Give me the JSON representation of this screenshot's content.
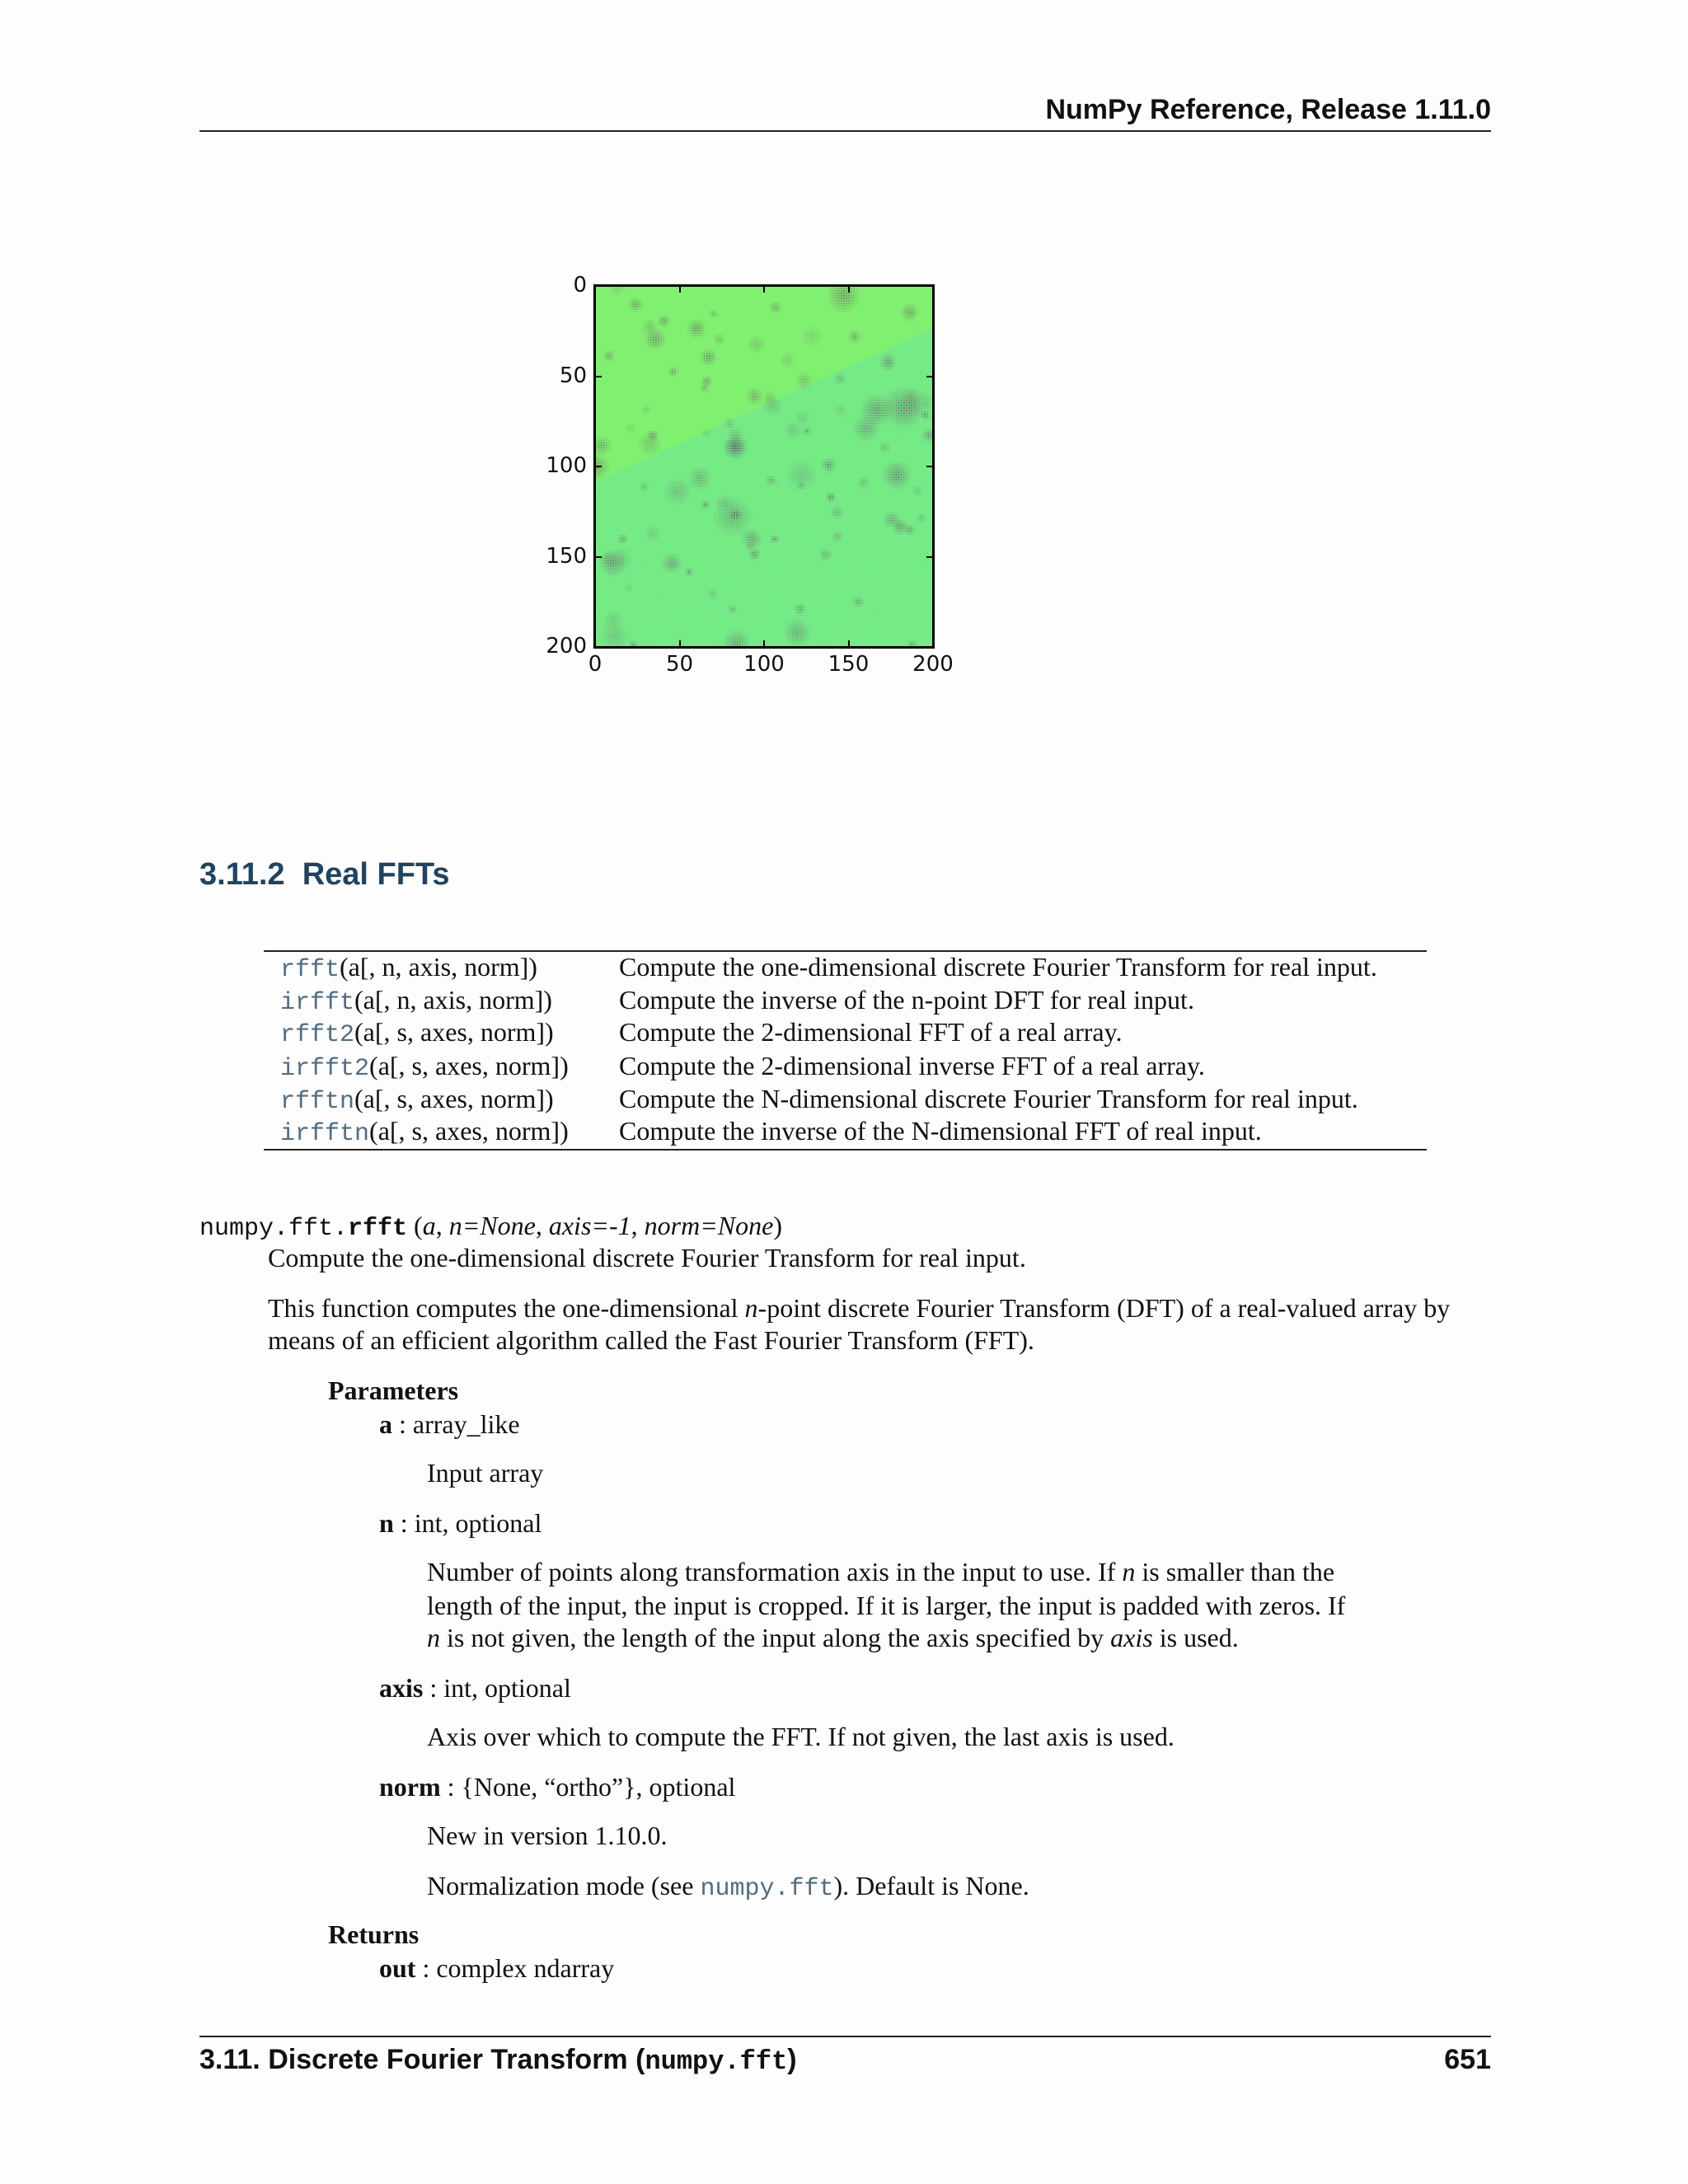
{
  "header": {
    "title": "NumPy Reference, Release 1.11.0"
  },
  "figure": {
    "chart_data": {
      "type": "heatmap",
      "title": "",
      "xlabel": "",
      "ylabel": "",
      "xlim": [
        0,
        200
      ],
      "ylim": [
        200,
        0
      ],
      "x_ticks": [
        "0",
        "50",
        "100",
        "150",
        "200"
      ],
      "y_ticks": [
        "0",
        "50",
        "100",
        "150",
        "200"
      ],
      "colormap": "jet",
      "background_color": "#80f070",
      "feature_color": "#3a3a8c",
      "grid": false,
      "legend": "none"
    }
  },
  "section": {
    "number": "3.11.2",
    "title": "Real FFTs"
  },
  "summary_table": [
    {
      "func": "rfft",
      "args": "(a[, n, axis, norm])",
      "desc": "Compute the one-dimensional discrete Fourier Transform for real input."
    },
    {
      "func": "irfft",
      "args": "(a[, n, axis, norm])",
      "desc": "Compute the inverse of the n-point DFT for real input."
    },
    {
      "func": "rfft2",
      "args": "(a[, s, axes, norm])",
      "desc": "Compute the 2-dimensional FFT of a real array."
    },
    {
      "func": "irfft2",
      "args": "(a[, s, axes, norm])",
      "desc": "Compute the 2-dimensional inverse FFT of a real array."
    },
    {
      "func": "rfftn",
      "args": "(a[, s, axes, norm])",
      "desc": "Compute the N-dimensional discrete Fourier Transform for real input."
    },
    {
      "func": "irfftn",
      "args": "(a[, s, axes, norm])",
      "desc": "Compute the inverse of the N-dimensional FFT of real input."
    }
  ],
  "signature": {
    "module": "numpy.fft.",
    "name": "rfft",
    "open": "(",
    "p_a": "a",
    "sep1": ", ",
    "p_n": "n=None",
    "sep2": ", ",
    "p_axis": "axis=-1",
    "sep3": ", ",
    "p_norm": "norm=None",
    "close": ")"
  },
  "body": {
    "summary": "Compute the one-dimensional discrete Fourier Transform for real input.",
    "para1_a": "This function computes the one-dimensional ",
    "para1_n": "n",
    "para1_b": "-point discrete Fourier Transform (DFT) of a real-valued array by",
    "para1_line2": "means of an efficient algorithm called the Fast Fourier Transform (FFT)."
  },
  "params": {
    "heading": "Parameters",
    "a_name": "a",
    "a_type": " : array_like",
    "a_desc": "Input array",
    "n_name": "n",
    "n_type": " : int, optional",
    "n_l1a": "Number of points along transformation axis in the input to use.  If ",
    "n_l1n": "n",
    "n_l1b": " is smaller than the",
    "n_l2": "length of the input, the input is cropped. If it is larger, the input is padded with zeros. If",
    "n_l3n": "n",
    "n_l3a": " is not given, the length of the input along the axis specified by ",
    "n_l3axis": "axis",
    "n_l3b": " is used.",
    "axis_name": "axis",
    "axis_type": " : int, optional",
    "axis_desc": "Axis over which to compute the FFT. If not given, the last axis is used.",
    "norm_name": "norm",
    "norm_type": " : {None, “ortho”}, optional",
    "norm_new": "New in version 1.10.0.",
    "norm_desc_a": "Normalization mode (see ",
    "norm_desc_link": "numpy.fft",
    "norm_desc_b": "). Default is None."
  },
  "returns": {
    "heading": "Returns",
    "out_name": "out",
    "out_type": " : complex ndarray"
  },
  "footer": {
    "section_a": "3.11.  Discrete Fourier Transform (",
    "section_code": "numpy.fft",
    "section_b": ")",
    "page": "651"
  }
}
